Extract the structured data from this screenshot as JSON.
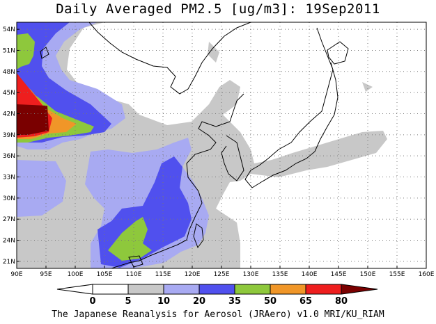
{
  "title": "Daily Averaged PM2.5 [ug/m3]: 19Sep2011",
  "credit": "The Japanese Reanalysis for Aerosol (JRAero) v1.0 MRI/KU_RIAM",
  "map": {
    "lon_range": [
      90,
      160
    ],
    "lat_range": [
      20,
      55
    ],
    "lon_ticks": [
      "90E",
      "95E",
      "100E",
      "105E",
      "110E",
      "115E",
      "120E",
      "125E",
      "130E",
      "135E",
      "140E",
      "145E",
      "150E",
      "155E",
      "160E"
    ],
    "lat_ticks": [
      "21N",
      "24N",
      "27N",
      "30N",
      "33N",
      "36N",
      "39N",
      "42N",
      "45N",
      "48N",
      "51N",
      "54N"
    ],
    "grid": "dotted"
  },
  "colorbar": {
    "levels": [
      "0",
      "5",
      "10",
      "20",
      "35",
      "50",
      "65",
      "80"
    ],
    "colors": {
      "c0": "#ffffff",
      "c5": "#c8c8c8",
      "c10": "#a8aaf2",
      "c20": "#5050ee",
      "c35": "#8ec83c",
      "c50": "#f09628",
      "c65": "#ee1e1e",
      "c80": "#7a0000"
    }
  }
}
